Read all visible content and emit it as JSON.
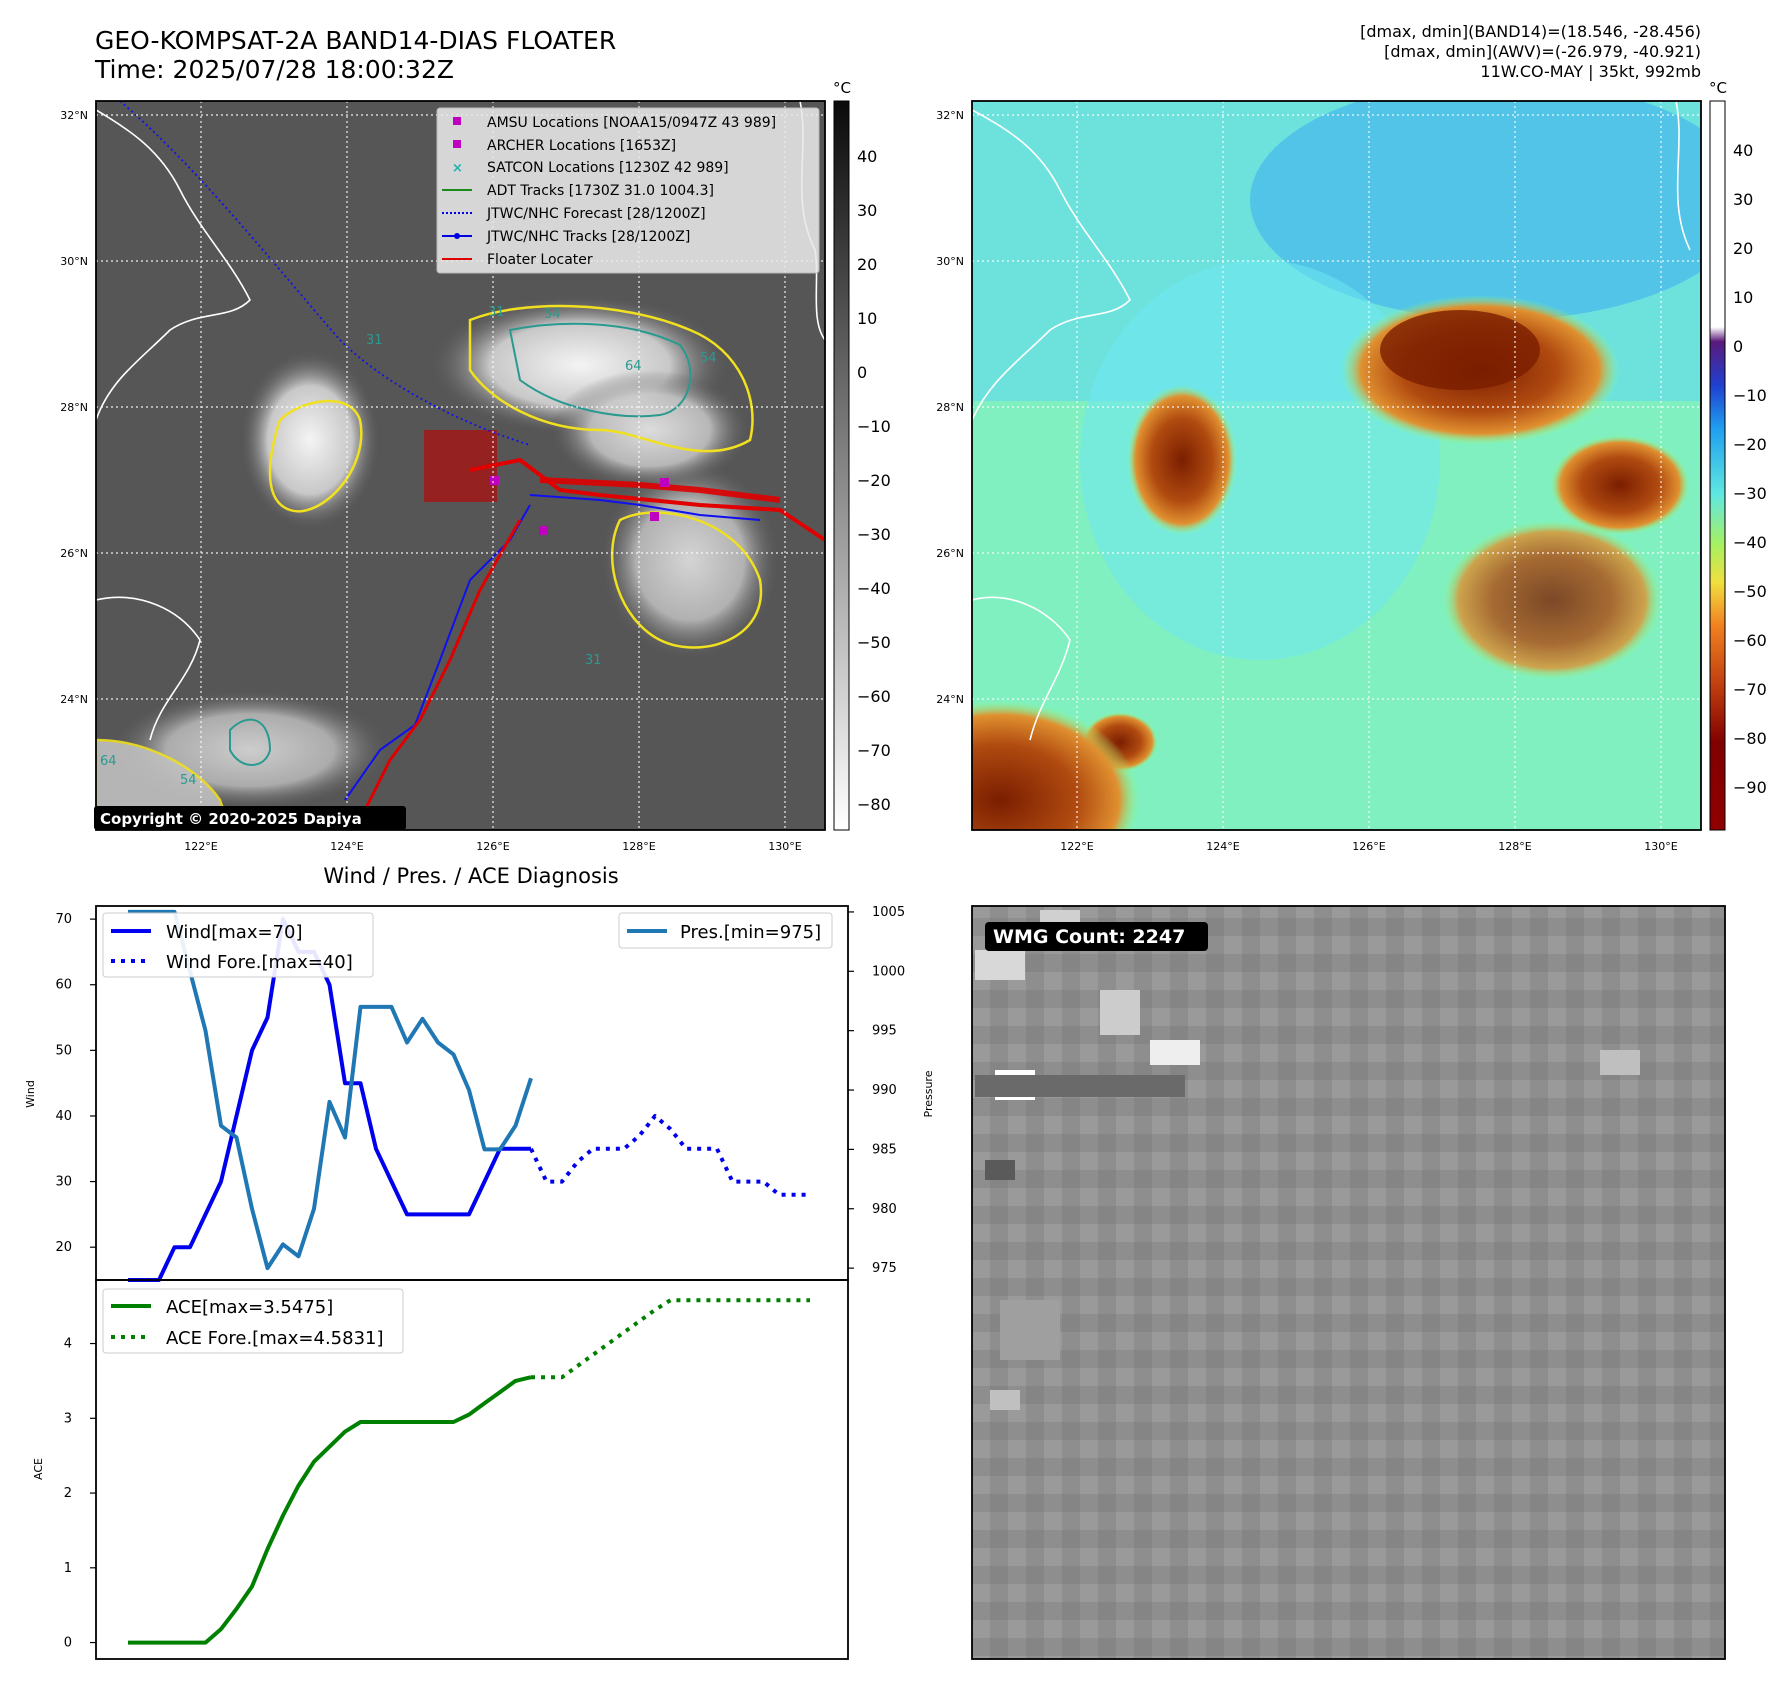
{
  "header": {
    "title_line1": "GEO-KOMPSAT-2A BAND14-DIAS FLOATER",
    "title_line2": "Time: 2025/07/28 18:00:32Z",
    "info_line1": "[dmax, dmin](BAND14)=(18.546, -28.456)",
    "info_line2": "[dmax, dmin](AWV)=(-26.979, -40.921)",
    "info_line3": "11W.CO-MAY | 35kt, 992mb"
  },
  "maps": {
    "lat_labels": [
      "32°N",
      "30°N",
      "28°N",
      "26°N",
      "24°N"
    ],
    "lon_labels": [
      "122°E",
      "124°E",
      "126°E",
      "128°E",
      "130°E"
    ],
    "copyright": "Copyright © 2020-2025 Dapiya",
    "colorbar_unit": "°C",
    "left_colorbar_ticks": [
      "40",
      "30",
      "20",
      "10",
      "0",
      "−10",
      "−20",
      "−30",
      "−40",
      "−50",
      "−60",
      "−70",
      "−80"
    ],
    "right_colorbar_ticks": [
      "40",
      "30",
      "20",
      "10",
      "0",
      "−10",
      "−20",
      "−30",
      "−40",
      "−50",
      "−60",
      "−70",
      "−80",
      "−90"
    ],
    "contour_labels": [
      "31",
      "54",
      "64",
      "54",
      "31",
      "54",
      "64",
      "31"
    ],
    "legend": [
      {
        "label": "AMSU Locations [NOAA15/0947Z 43 989]",
        "color": "#c000c0",
        "marker": "square"
      },
      {
        "label": "ARCHER Locations [1653Z]",
        "color": "#c000c0",
        "marker": "square"
      },
      {
        "label": "SATCON Locations [1230Z 42 989]",
        "color": "#20b0b0",
        "marker": "x"
      },
      {
        "label": "ADT Tracks [1730Z 31.0 1004.3]",
        "color": "#1a8a1a",
        "marker": "line"
      },
      {
        "label": "JTWC/NHC Forecast [28/1200Z]",
        "color": "#0000e0",
        "marker": "dotted"
      },
      {
        "label": "JTWC/NHC Tracks [28/1200Z]",
        "color": "#0000e0",
        "marker": "line-dot"
      },
      {
        "label": "Floater Locater",
        "color": "#e00000",
        "marker": "line"
      }
    ]
  },
  "diag": {
    "title": "Wind / Pres. / ACE Diagnosis",
    "wind_label": "Wind",
    "pres_label": "Pressure",
    "ace_label": "ACE",
    "legend_wind": "Wind[max=70]",
    "legend_wind_fore": "Wind Fore.[max=40]",
    "legend_pres": "Pres.[min=975]",
    "legend_ace": "ACE[max=3.5475]",
    "legend_ace_fore": "ACE Fore.[max=4.5831]"
  },
  "wmg": {
    "label": "WMG Count: 2247"
  },
  "chart_data": [
    {
      "type": "line",
      "title": "Wind / Pres. / ACE Diagnosis",
      "ylabel": "Wind",
      "y2label": "Pressure",
      "ylim": [
        15,
        72
      ],
      "y2lim": [
        974,
        1005.5
      ],
      "yticks": [
        20,
        30,
        40,
        50,
        60,
        70
      ],
      "y2ticks": [
        975,
        980,
        985,
        990,
        995,
        1000,
        1005
      ],
      "series": [
        {
          "name": "Wind[max=70]",
          "axis": "left",
          "style": "solid",
          "color": "#0000ee",
          "x": [
            0,
            1,
            2,
            3,
            4,
            5,
            6,
            7,
            8,
            9,
            10,
            11,
            12,
            13,
            14,
            15,
            16,
            17,
            18,
            19,
            20,
            21,
            22,
            23,
            24,
            25,
            26
          ],
          "y": [
            15,
            15,
            15,
            20,
            20,
            25,
            30,
            40,
            50,
            55,
            70,
            65,
            65,
            60,
            45,
            45,
            35,
            30,
            25,
            25,
            25,
            25,
            25,
            30,
            35,
            35,
            35
          ]
        },
        {
          "name": "Wind Fore.[max=40]",
          "axis": "left",
          "style": "dotted",
          "color": "#0000ee",
          "x": [
            26,
            27,
            28,
            29,
            30,
            31,
            32,
            33,
            34,
            35,
            36,
            37,
            38,
            39,
            40,
            41,
            42,
            43,
            44
          ],
          "y": [
            35,
            30,
            30,
            33,
            35,
            35,
            35,
            37,
            40,
            38,
            35,
            35,
            35,
            30,
            30,
            30,
            28,
            28,
            28
          ]
        },
        {
          "name": "Pres.[min=975]",
          "axis": "right",
          "style": "solid",
          "color": "#1f77b4",
          "x": [
            0,
            1,
            2,
            3,
            4,
            5,
            6,
            7,
            8,
            9,
            10,
            11,
            12,
            13,
            14,
            15,
            16,
            17,
            18,
            19,
            20,
            21,
            22,
            23,
            24,
            25,
            26
          ],
          "y": [
            1005,
            1005,
            1005,
            1005,
            1000,
            995,
            987,
            986,
            980,
            975,
            977,
            976,
            980,
            989,
            986,
            997,
            997,
            997,
            994,
            996,
            994,
            993,
            990,
            985,
            985,
            987,
            991
          ]
        }
      ]
    },
    {
      "type": "line",
      "ylabel": "ACE",
      "ylim": [
        -0.22,
        4.85
      ],
      "yticks": [
        0,
        1,
        2,
        3,
        4
      ],
      "series": [
        {
          "name": "ACE[max=3.5475]",
          "style": "solid",
          "color": "#008000",
          "x": [
            0,
            1,
            2,
            3,
            4,
            5,
            6,
            7,
            8,
            9,
            10,
            11,
            12,
            13,
            14,
            15,
            16,
            17,
            18,
            19,
            20,
            21,
            22,
            23,
            24,
            25,
            26
          ],
          "y": [
            0,
            0,
            0,
            0,
            0,
            0,
            0.18,
            0.45,
            0.75,
            1.25,
            1.7,
            2.1,
            2.42,
            2.62,
            2.82,
            2.95,
            2.95,
            2.95,
            2.95,
            2.95,
            2.95,
            2.95,
            3.05,
            3.2,
            3.35,
            3.5,
            3.55
          ]
        },
        {
          "name": "ACE Fore.[max=4.5831]",
          "style": "dotted",
          "color": "#008000",
          "x": [
            26,
            27,
            28,
            29,
            30,
            31,
            32,
            33,
            34,
            35,
            36,
            37,
            38,
            39,
            40,
            41,
            42,
            43,
            44
          ],
          "y": [
            3.55,
            3.55,
            3.55,
            3.7,
            3.85,
            4.0,
            4.15,
            4.3,
            4.45,
            4.58,
            4.58,
            4.58,
            4.58,
            4.58,
            4.58,
            4.58,
            4.58,
            4.58,
            4.58
          ]
        }
      ]
    }
  ]
}
